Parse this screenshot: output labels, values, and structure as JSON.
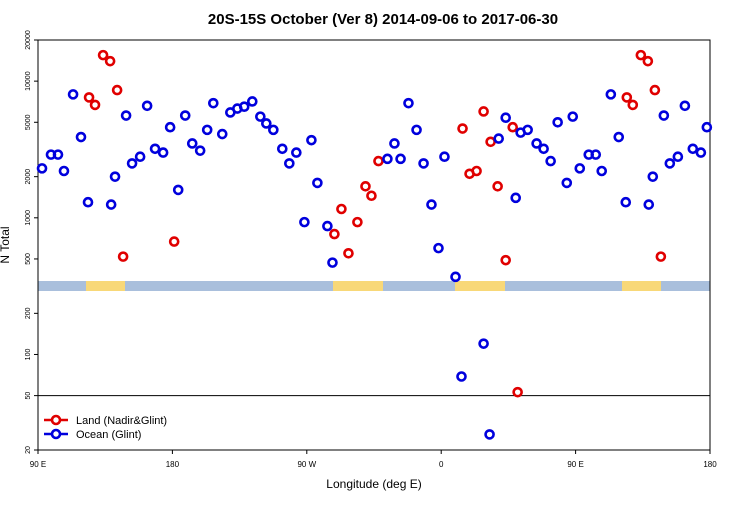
{
  "chart_data": {
    "type": "scatter",
    "title": "20S-15S October (Ver 8)   2014-09-06 to 2017-06-30",
    "x_label": "Longitude (deg E)",
    "y_label": "N Total",
    "log_y": true,
    "xlim": [
      90,
      540
    ],
    "xticks": [
      {
        "value": 90,
        "label": "90 E"
      },
      {
        "value": 180,
        "label": "180"
      },
      {
        "value": 270,
        "label": "90 W"
      },
      {
        "value": 360,
        "label": "0"
      },
      {
        "value": 450,
        "label": "90 E"
      },
      {
        "value": 540,
        "label": "180"
      }
    ],
    "ylim": [
      20,
      20000
    ],
    "yticks": [
      20,
      50,
      100,
      200,
      500,
      1000,
      2000,
      5000,
      10000,
      20000
    ],
    "hline": 50,
    "legend": "bottom-left",
    "series": [
      {
        "name": "Land (Nadir&Glint)",
        "color": "#e00000",
        "x": [
          124.2,
          128.2,
          133.6,
          138.3,
          143,
          147,
          181.2,
          288.5,
          293.2,
          297.9,
          303.9,
          309.3,
          313.3,
          318,
          374.3,
          379,
          383.7,
          388.4,
          393.1,
          397.8,
          403.2,
          407.9,
          411.2,
          484.3,
          488.3,
          493.7,
          498.4,
          503.1,
          507.1
        ],
        "values": [
          7600,
          6700,
          15500,
          14000,
          8600,
          520,
          670,
          760,
          1160,
          550,
          930,
          1700,
          1450,
          2600,
          4500,
          2100,
          2200,
          6000,
          3600,
          1700,
          490,
          4600,
          53,
          7600,
          6700,
          15500,
          14000,
          8600,
          520
        ]
      },
      {
        "name": "Ocean (Glint)",
        "color": "#0000dd",
        "x": [
          92.7,
          98.7,
          103.4,
          107.4,
          113.5,
          118.8,
          123.5,
          139,
          141.6,
          149,
          153,
          158.4,
          163.1,
          168.4,
          173.8,
          178.5,
          183.9,
          188.6,
          193.3,
          198.6,
          203.3,
          207.4,
          213.4,
          218.8,
          223.5,
          228.1,
          233.5,
          238.9,
          242.9,
          247.6,
          253.6,
          258.3,
          263,
          268.4,
          273.1,
          277.1,
          283.8,
          287.2,
          324,
          328.7,
          332.8,
          338.1,
          343.5,
          348.2,
          353.5,
          358.2,
          362.2,
          369.6,
          373.6,
          388.4,
          392.4,
          398.5,
          403.2,
          409.9,
          413.2,
          417.9,
          423.9,
          428.6,
          433.3,
          438,
          444.1,
          448.1,
          452.8,
          458.8,
          463.5,
          467.5,
          473.6,
          478.9,
          483.6,
          499,
          501.7,
          509.1,
          513.1,
          518.5,
          523.2,
          528.5,
          533.9,
          537.9
        ],
        "values": [
          2300,
          2900,
          2900,
          2200,
          8000,
          3900,
          1300,
          1250,
          2000,
          5600,
          2500,
          2800,
          6600,
          3200,
          3000,
          4600,
          1600,
          5600,
          3500,
          3100,
          4400,
          6900,
          4100,
          5900,
          6300,
          6500,
          7100,
          5500,
          4900,
          4400,
          3200,
          2500,
          3000,
          930,
          3700,
          1800,
          870,
          470,
          2700,
          3500,
          2700,
          6900,
          4400,
          2500,
          1250,
          600,
          2800,
          370,
          69,
          120,
          26,
          3800,
          5400,
          1400,
          4200,
          4400,
          3500,
          3200,
          2600,
          5000,
          1800,
          5500,
          2300,
          2900,
          2900,
          2200,
          8000,
          3900,
          1300,
          1250,
          2000,
          5600,
          2500,
          2800,
          6600,
          3200,
          3000,
          4600
        ]
      }
    ]
  }
}
